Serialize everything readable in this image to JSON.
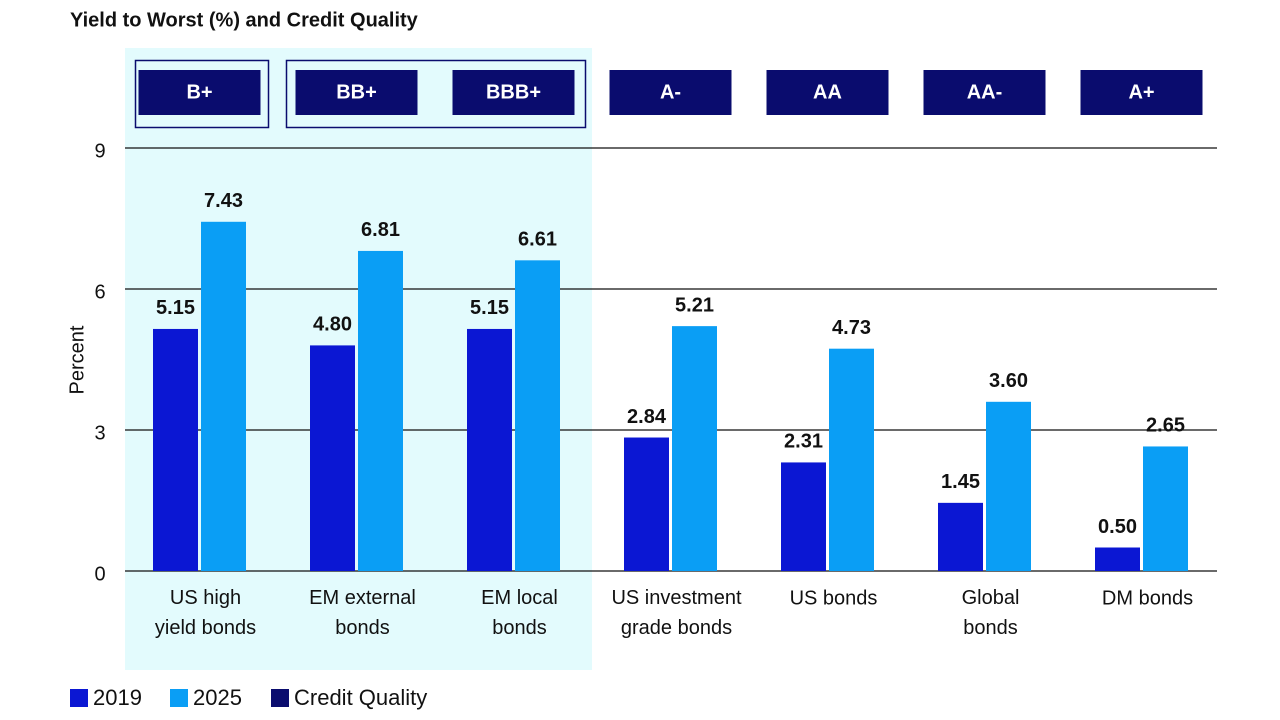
{
  "chart_data": {
    "type": "bar",
    "title": "Yield to Worst (%) and Credit Quality",
    "y_label": "Percent",
    "categories": [
      "US high\nyield bonds",
      "EM external\nbonds",
      "EM local\nbonds",
      "US investment\ngrade bonds",
      "US bonds",
      "Global\nbonds",
      "DM bonds"
    ],
    "series": [
      {
        "name": "2019",
        "color": "#0b17d3",
        "values": [
          5.15,
          4.8,
          5.15,
          2.84,
          2.31,
          1.45,
          0.5
        ],
        "value_labels": [
          "5.15",
          "4.80",
          "5.15",
          "2.84",
          "2.31",
          "1.45",
          "0.50"
        ]
      },
      {
        "name": "2025",
        "color": "#0a9ef5",
        "values": [
          7.43,
          6.81,
          6.61,
          5.21,
          4.73,
          3.6,
          2.65
        ],
        "value_labels": [
          "7.43",
          "6.81",
          "6.61",
          "5.21",
          "4.73",
          "3.60",
          "2.65"
        ]
      }
    ],
    "credit_quality": {
      "name": "Credit Quality",
      "color": "#0a0c6e",
      "ratings": [
        "B+",
        "BB+",
        "BBB+",
        "A-",
        "AA",
        "AA-",
        "A+"
      ]
    },
    "ylim": [
      0,
      9
    ],
    "yticks": [
      0,
      3,
      6,
      9
    ],
    "grid": true
  }
}
